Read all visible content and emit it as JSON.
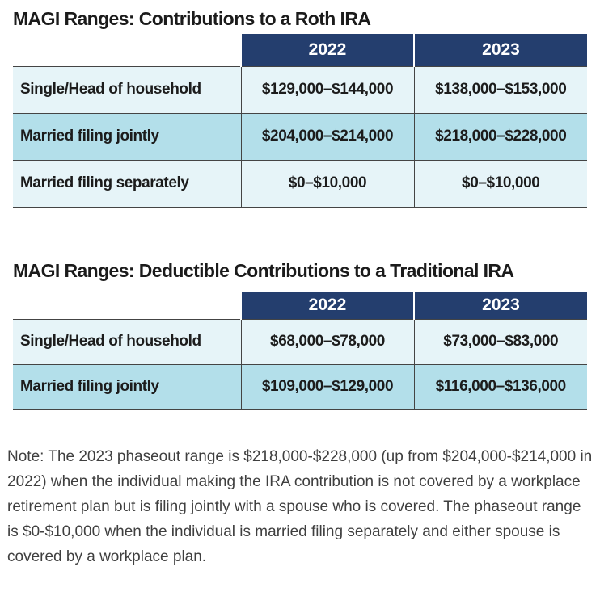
{
  "roth": {
    "title": "MAGI Ranges: Contributions to a Roth IRA",
    "headers": [
      "2022",
      "2023"
    ],
    "rows": [
      {
        "label": "Single/Head of household",
        "y2022": "$129,000–$144,000",
        "y2023": "$138,000–$153,000"
      },
      {
        "label": "Married filing jointly",
        "y2022": "$204,000–$214,000",
        "y2023": "$218,000–$228,000"
      },
      {
        "label": "Married filing separately",
        "y2022": "$0–$10,000",
        "y2023": "$0–$10,000"
      }
    ]
  },
  "traditional": {
    "title": "MAGI Ranges: Deductible Contributions to a Traditional IRA",
    "headers": [
      "2022",
      "2023"
    ],
    "rows": [
      {
        "label": "Single/Head of household",
        "y2022": "$68,000–$78,000",
        "y2023": "$73,000–$83,000"
      },
      {
        "label": "Married filing jointly",
        "y2022": "$109,000–$129,000",
        "y2023": "$116,000–$136,000"
      }
    ]
  },
  "note": "Note: The 2023 phaseout range is $218,000-$228,000 (up from $204,000-$214,000 in 2022) when the individual making the IRA contribution is not covered by a workplace retirement plan but is filing jointly with a spouse who is covered. The phaseout range is $0-$10,000 when the individual is married filing separately and either spouse is covered by a workplace plan.",
  "colors": {
    "header_navy": "#243e6e",
    "row_light": "#e6f4f8",
    "row_dark": "#b3dfea"
  }
}
